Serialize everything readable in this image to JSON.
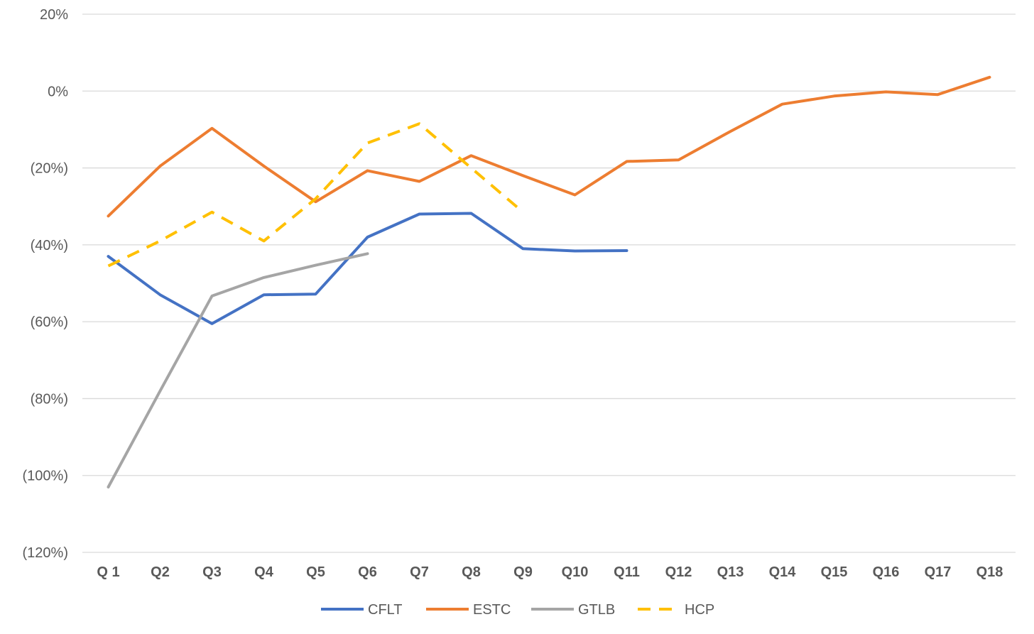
{
  "chart_data": {
    "type": "line",
    "title": "",
    "xlabel": "",
    "ylabel": "",
    "categories": [
      "Q 1",
      "Q2",
      "Q3",
      "Q4",
      "Q5",
      "Q6",
      "Q7",
      "Q8",
      "Q9",
      "Q10",
      "Q11",
      "Q12",
      "Q13",
      "Q14",
      "Q15",
      "Q16",
      "Q17",
      "Q18"
    ],
    "ylim": [
      -120,
      20
    ],
    "yticks": [
      20,
      0,
      -20,
      -40,
      -60,
      -80,
      -100,
      -120
    ],
    "ytick_labels": [
      "20%",
      "0%",
      "(20%)",
      "(40%)",
      "(60%)",
      "(80%)",
      "(100%)",
      "(120%)"
    ],
    "grid": true,
    "legend_position": "bottom",
    "series": [
      {
        "name": "CFLT",
        "color": "#4472c4",
        "dash": false,
        "values": [
          -43,
          -53,
          -60.5,
          -53,
          -52.8,
          -38,
          -32,
          -31.8,
          -41,
          -41.6,
          -41.5,
          null,
          null,
          null,
          null,
          null,
          null,
          null
        ]
      },
      {
        "name": "ESTC",
        "color": "#ed7d31",
        "dash": false,
        "values": [
          -32.5,
          -19.5,
          -9.7,
          -19.5,
          -28.8,
          -20.7,
          -23.5,
          -16.8,
          -22,
          -27,
          -18.3,
          -17.9,
          -10.5,
          -3.4,
          -1.3,
          -0.2,
          -0.9,
          3.6
        ]
      },
      {
        "name": "GTLB",
        "color": "#a5a5a5",
        "dash": false,
        "values": [
          -103,
          -78,
          -53.3,
          -48.5,
          -45.3,
          -42.3,
          null,
          null,
          null,
          null,
          null,
          null,
          null,
          null,
          null,
          null,
          null,
          null
        ]
      },
      {
        "name": "HCP",
        "color": "#ffc000",
        "dash": true,
        "values": [
          -45.5,
          -39,
          -31.5,
          -39,
          -28,
          -13.5,
          -8.5,
          -20,
          -31.5,
          null,
          null,
          null,
          null,
          null,
          null,
          null,
          null,
          null
        ]
      }
    ]
  }
}
